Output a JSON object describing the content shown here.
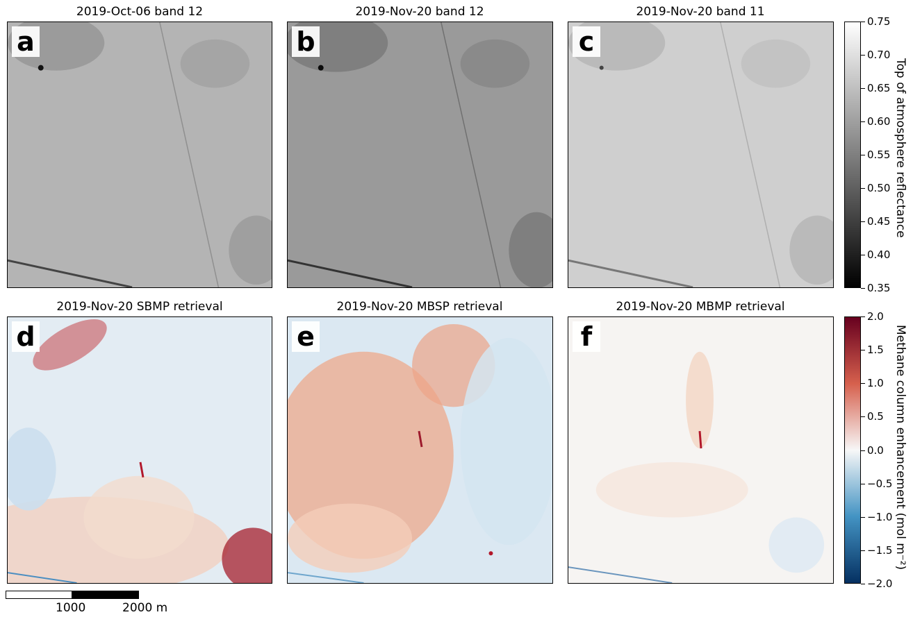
{
  "panels_top": [
    {
      "letter": "a",
      "title": "2019-Oct-06 band 12",
      "tone": "#b4b4b4",
      "tone_dark": "#8a8a8a"
    },
    {
      "letter": "b",
      "title": "2019-Nov-20 band 12",
      "tone": "#9a9a9a",
      "tone_dark": "#6e6e6e"
    },
    {
      "letter": "c",
      "title": "2019-Nov-20 band 11",
      "tone": "#cfcfcf",
      "tone_dark": "#a9a9a9"
    }
  ],
  "panels_bottom": [
    {
      "letter": "d",
      "title": "2019-Nov-20 SBMP retrieval"
    },
    {
      "letter": "e",
      "title": "2019-Nov-20 MBSP retrieval"
    },
    {
      "letter": "f",
      "title": "2019-Nov-20 MBMP retrieval"
    }
  ],
  "colorbar_gray": {
    "label": "Top of atmosphere reflectance",
    "ticks": [
      "0.75",
      "0.70",
      "0.65",
      "0.60",
      "0.55",
      "0.50",
      "0.45",
      "0.40",
      "0.35"
    ],
    "top_color": "#ffffff",
    "bottom_color": "#000000"
  },
  "colorbar_rdbu": {
    "label": "Methane column enhancement (mol m⁻²)",
    "ticks": [
      "2.0",
      "1.5",
      "1.0",
      "0.5",
      "0.0",
      "−0.5",
      "−1.0",
      "−1.5",
      "−2.0"
    ],
    "top_color": "#67001f",
    "mid_color": "#f7f7f7",
    "bottom_color": "#053061"
  },
  "scalebar": {
    "labels": [
      "1000",
      "2000 m"
    ]
  }
}
